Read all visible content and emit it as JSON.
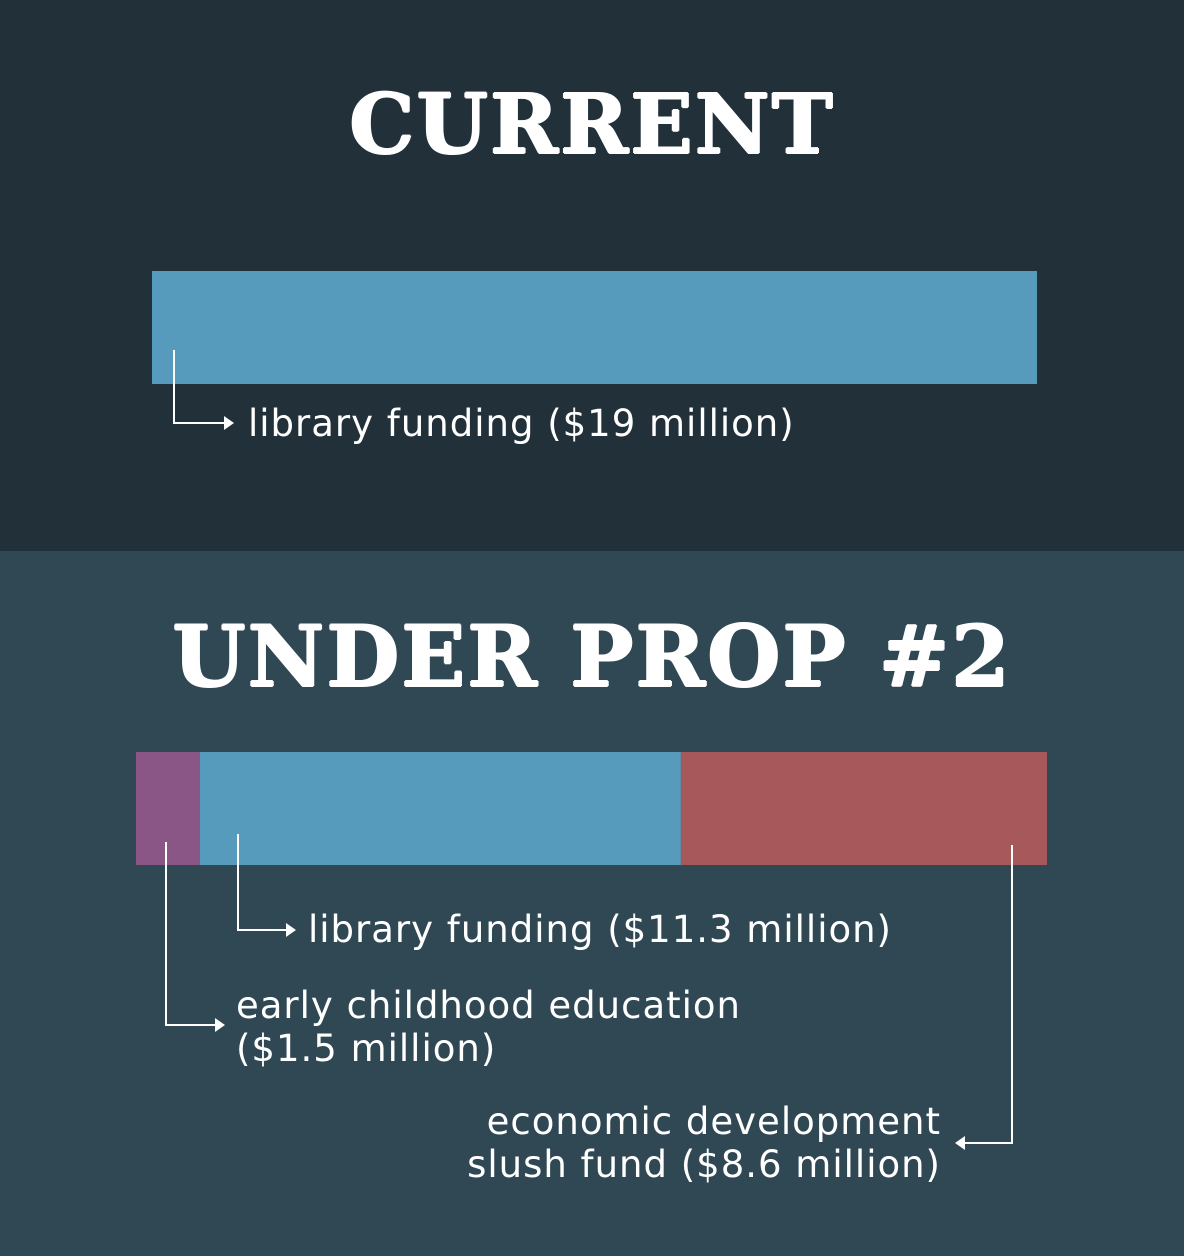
{
  "colors": {
    "background_current": "#213039",
    "background_prop": "#304854",
    "library": "#569bbb",
    "early_childhood": "#8a5686",
    "economic_development": "#a6585a",
    "text": "#ffffff"
  },
  "chart_data": [
    {
      "type": "bar",
      "orientation": "horizontal-stacked",
      "title": "CURRENT",
      "series": [
        {
          "name": "library funding",
          "value": 19,
          "display": "library funding ($19 million)",
          "color": "#569bbb"
        }
      ],
      "units": "$ million"
    },
    {
      "type": "bar",
      "orientation": "horizontal-stacked",
      "title": "UNDER PROP #2",
      "series": [
        {
          "name": "early childhood education",
          "value": 1.5,
          "display_lines": [
            "early childhood education",
            "($1.5 million)"
          ],
          "color": "#8a5686"
        },
        {
          "name": "library funding",
          "value": 11.3,
          "display": "library funding ($11.3 million)",
          "color": "#569bbb"
        },
        {
          "name": "economic development slush fund",
          "value": 8.6,
          "display_lines": [
            "economic development",
            "slush fund ($8.6 million)"
          ],
          "color": "#a6585a"
        }
      ],
      "units": "$ million"
    }
  ]
}
